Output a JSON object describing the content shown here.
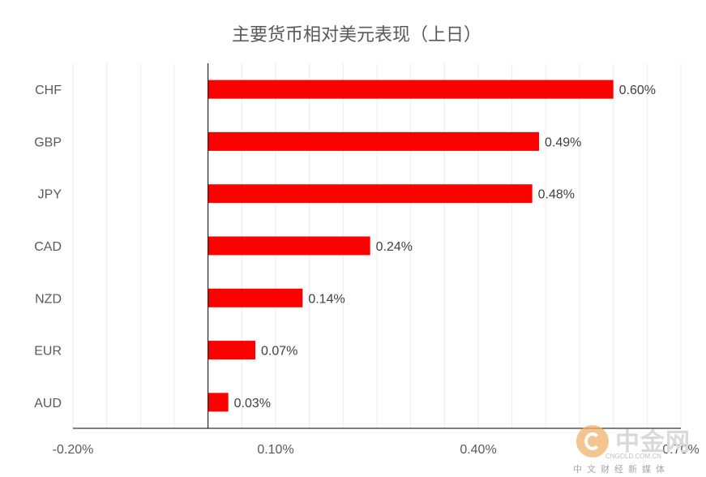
{
  "chart_data": {
    "type": "bar",
    "orientation": "horizontal",
    "title": "主要货币相对美元表现（上日）",
    "categories": [
      "CHF",
      "GBP",
      "JPY",
      "CAD",
      "NZD",
      "EUR",
      "AUD"
    ],
    "values": [
      0.6,
      0.49,
      0.48,
      0.24,
      0.14,
      0.07,
      0.03
    ],
    "value_labels": [
      "0.60%",
      "0.49%",
      "0.48%",
      "0.24%",
      "0.14%",
      "0.07%",
      "0.03%"
    ],
    "xlim": [
      -0.2,
      0.7
    ],
    "x_tick_labels": [
      "-0.20%",
      "0.10%",
      "0.40%",
      "0.70%"
    ],
    "bar_color": "#ff0000",
    "grid": true,
    "legend": "none"
  },
  "watermark": {
    "name": "中金网",
    "domain": "CNGOLD.COM.CN",
    "slogan": "中文财经新媒体"
  }
}
